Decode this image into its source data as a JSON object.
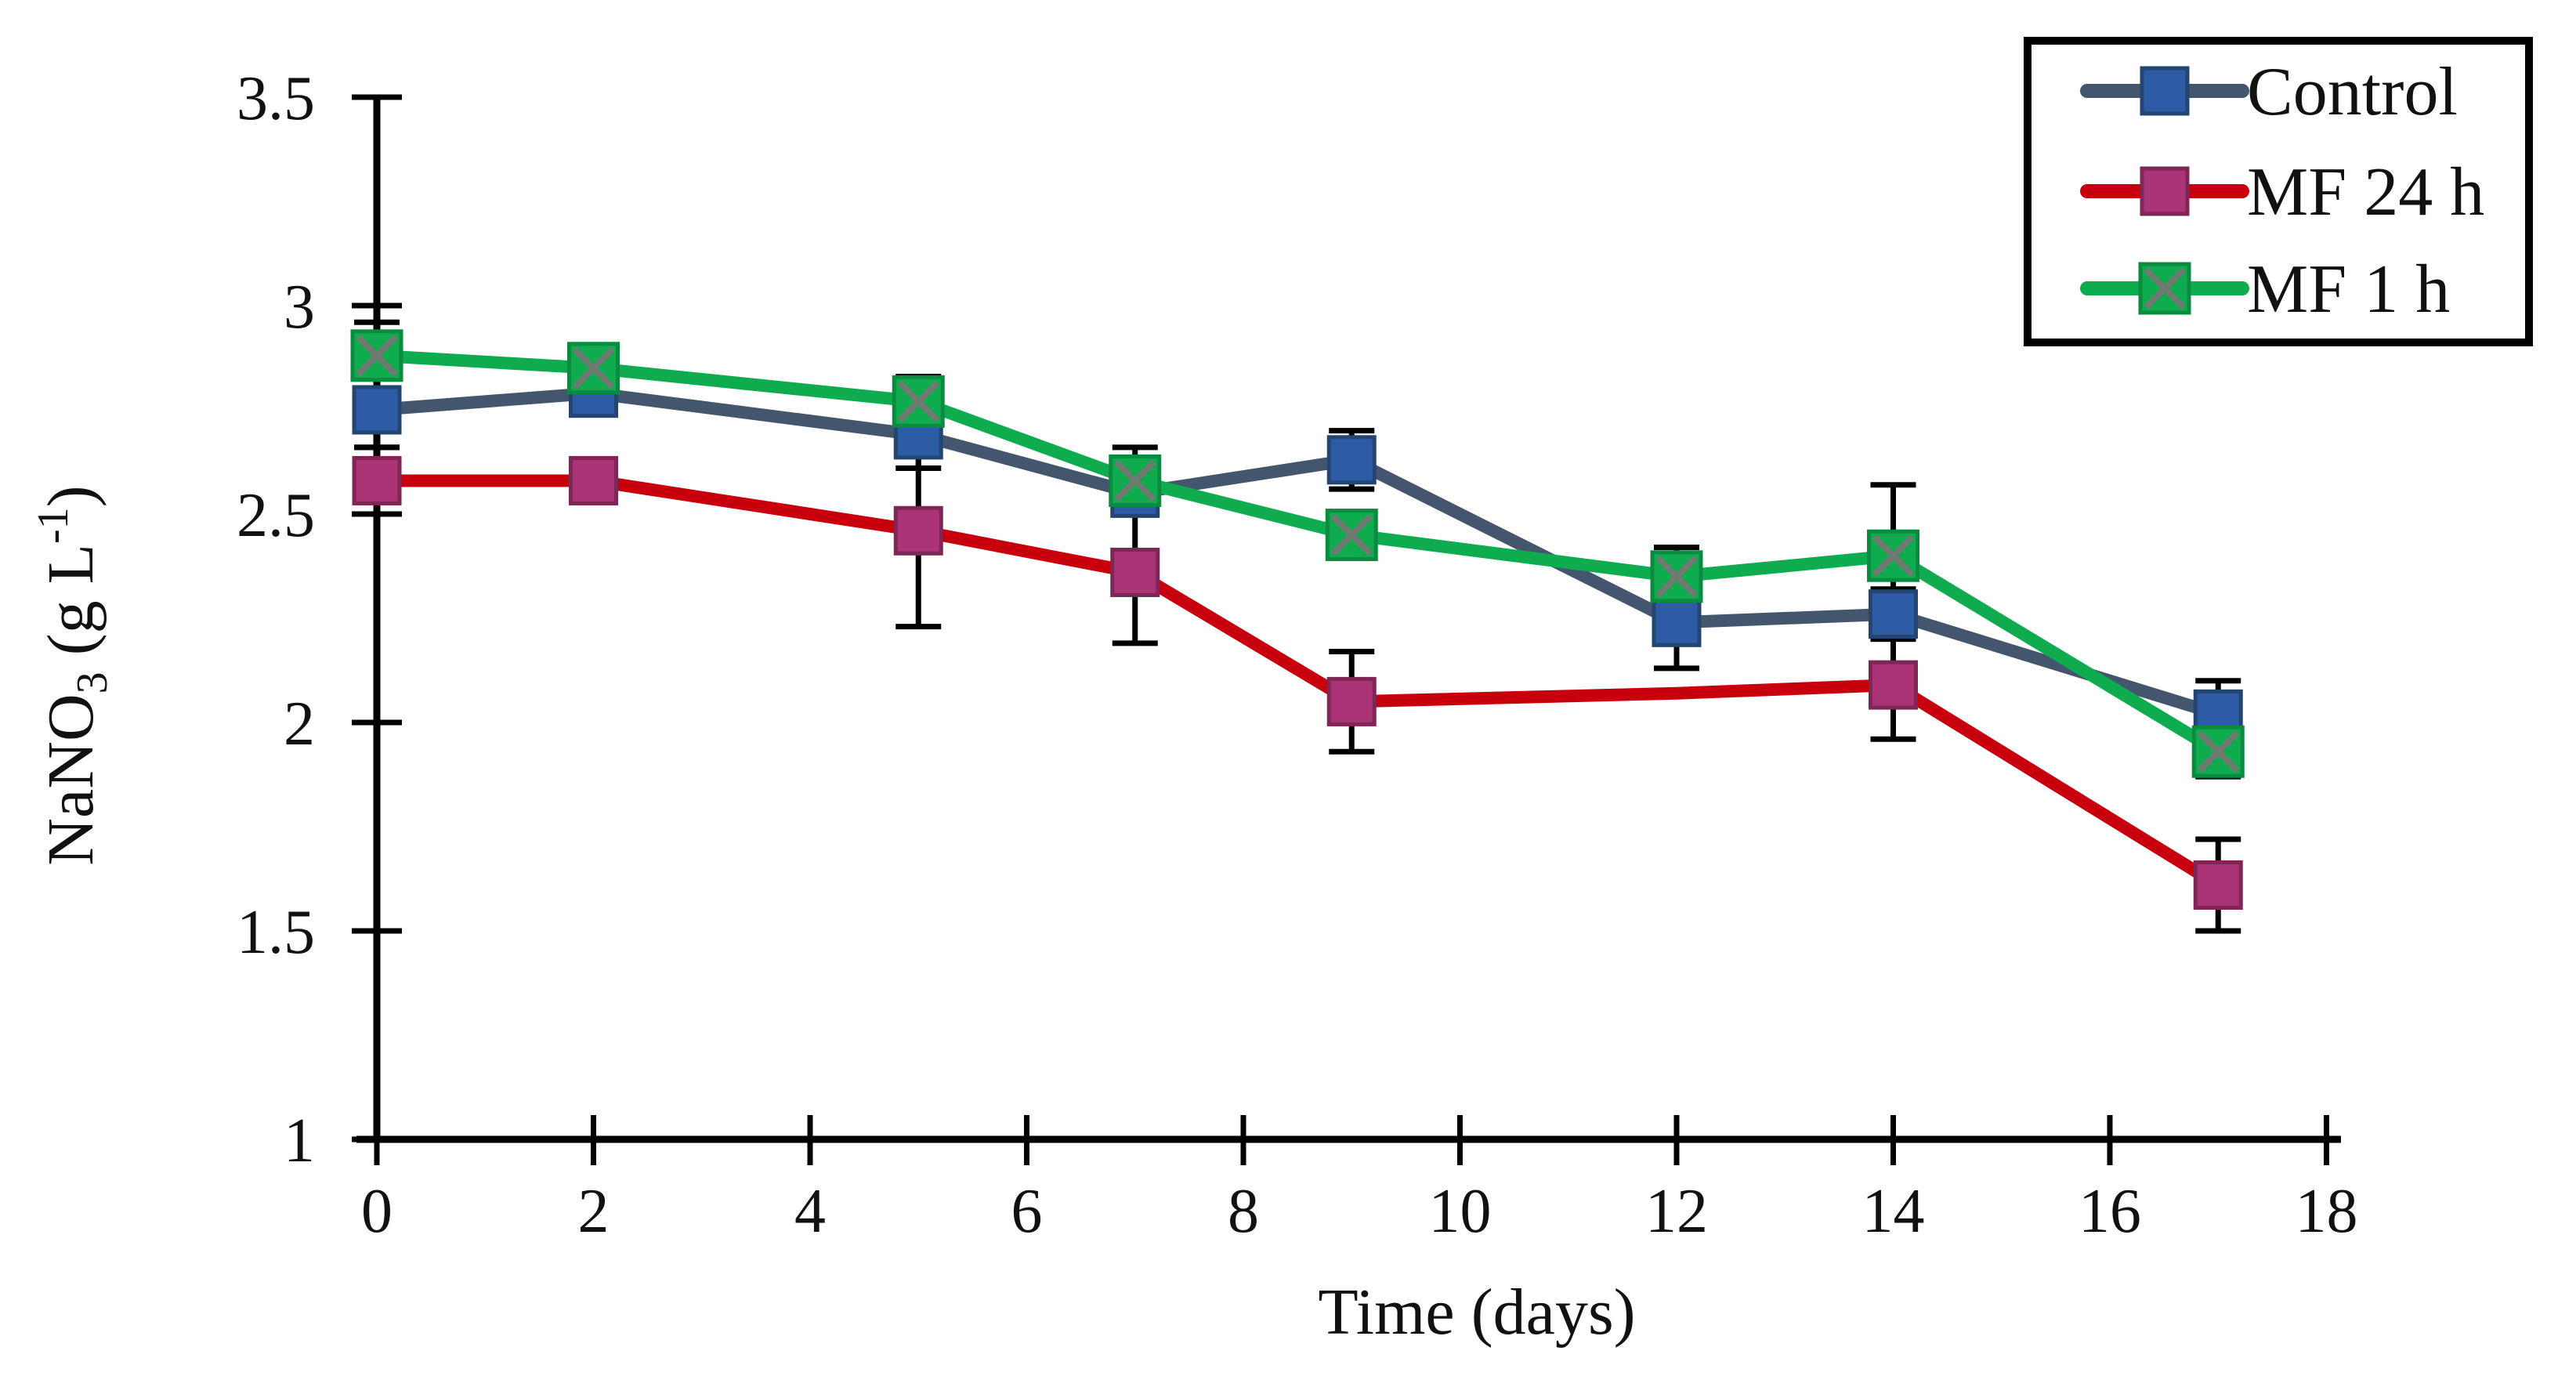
{
  "figure": {
    "kind": "scientific line chart with error bars",
    "background": "#ffffff"
  },
  "chart_data": {
    "type": "line",
    "title": "",
    "xlabel": "Time (days)",
    "ylabel_parts": {
      "base": "NaNO",
      "sub": "3",
      "mid": " (g L",
      "sup": "-1",
      "end": ")"
    },
    "ylabel_plain": "NaNO3 (g L-1)",
    "x": [
      0,
      2,
      5,
      7,
      9,
      12,
      14,
      17
    ],
    "x_tick_labels": [
      "0",
      "2",
      "4",
      "6",
      "8",
      "10",
      "12",
      "14",
      "16",
      "18"
    ],
    "x_tick_values": [
      0,
      2,
      4,
      6,
      8,
      10,
      12,
      14,
      16,
      18
    ],
    "y_tick_labels": [
      "3.5",
      "3",
      "2.5",
      "2",
      "1.5",
      "1"
    ],
    "y_tick_values": [
      3.5,
      3,
      2.5,
      2,
      1.5,
      1
    ],
    "xlim": [
      0,
      18
    ],
    "ylim": [
      1,
      3.5
    ],
    "grid": false,
    "legend_position": "top-right",
    "axis_color": "#000000",
    "error_bar_color": "#000000",
    "series": [
      {
        "name": "Control",
        "line_color": "#44566E",
        "marker": "square",
        "marker_fill": "#2E5BA5",
        "marker_edge": "#23456F",
        "values": [
          2.75,
          2.79,
          2.69,
          2.55,
          2.63,
          2.24,
          2.26,
          2.02
        ],
        "errors": [
          0.09,
          0.05,
          0.08,
          0.03,
          0.07,
          0.11,
          0.06,
          0.08
        ],
        "no_marker_at_x": []
      },
      {
        "name": "MF 24 h",
        "line_color": "#C8000E",
        "marker": "square",
        "marker_fill": "#AB3476",
        "marker_edge": "#7E2655",
        "values": [
          2.58,
          2.58,
          2.46,
          2.36,
          2.05,
          2.07,
          2.09,
          1.61
        ],
        "errors": [
          0.08,
          0.02,
          0.23,
          0.17,
          0.12,
          0,
          0.13,
          0.11
        ],
        "no_marker_at_x": [
          12
        ]
      },
      {
        "name": "MF 1 h",
        "line_color": "#0EAC4F",
        "marker": "square-x",
        "marker_fill": "#0EAC4F",
        "marker_edge": "#0A8B40",
        "marker_x_color": "#6F7A70",
        "values": [
          2.88,
          2.85,
          2.77,
          2.58,
          2.45,
          2.35,
          2.4,
          1.93
        ],
        "errors": [
          0.08,
          0.03,
          0.06,
          0.08,
          0.05,
          0.07,
          0.17,
          0.06
        ],
        "no_marker_at_x": []
      }
    ],
    "legend_labels": [
      "Control",
      "MF 24 h",
      "MF 1 h"
    ]
  }
}
